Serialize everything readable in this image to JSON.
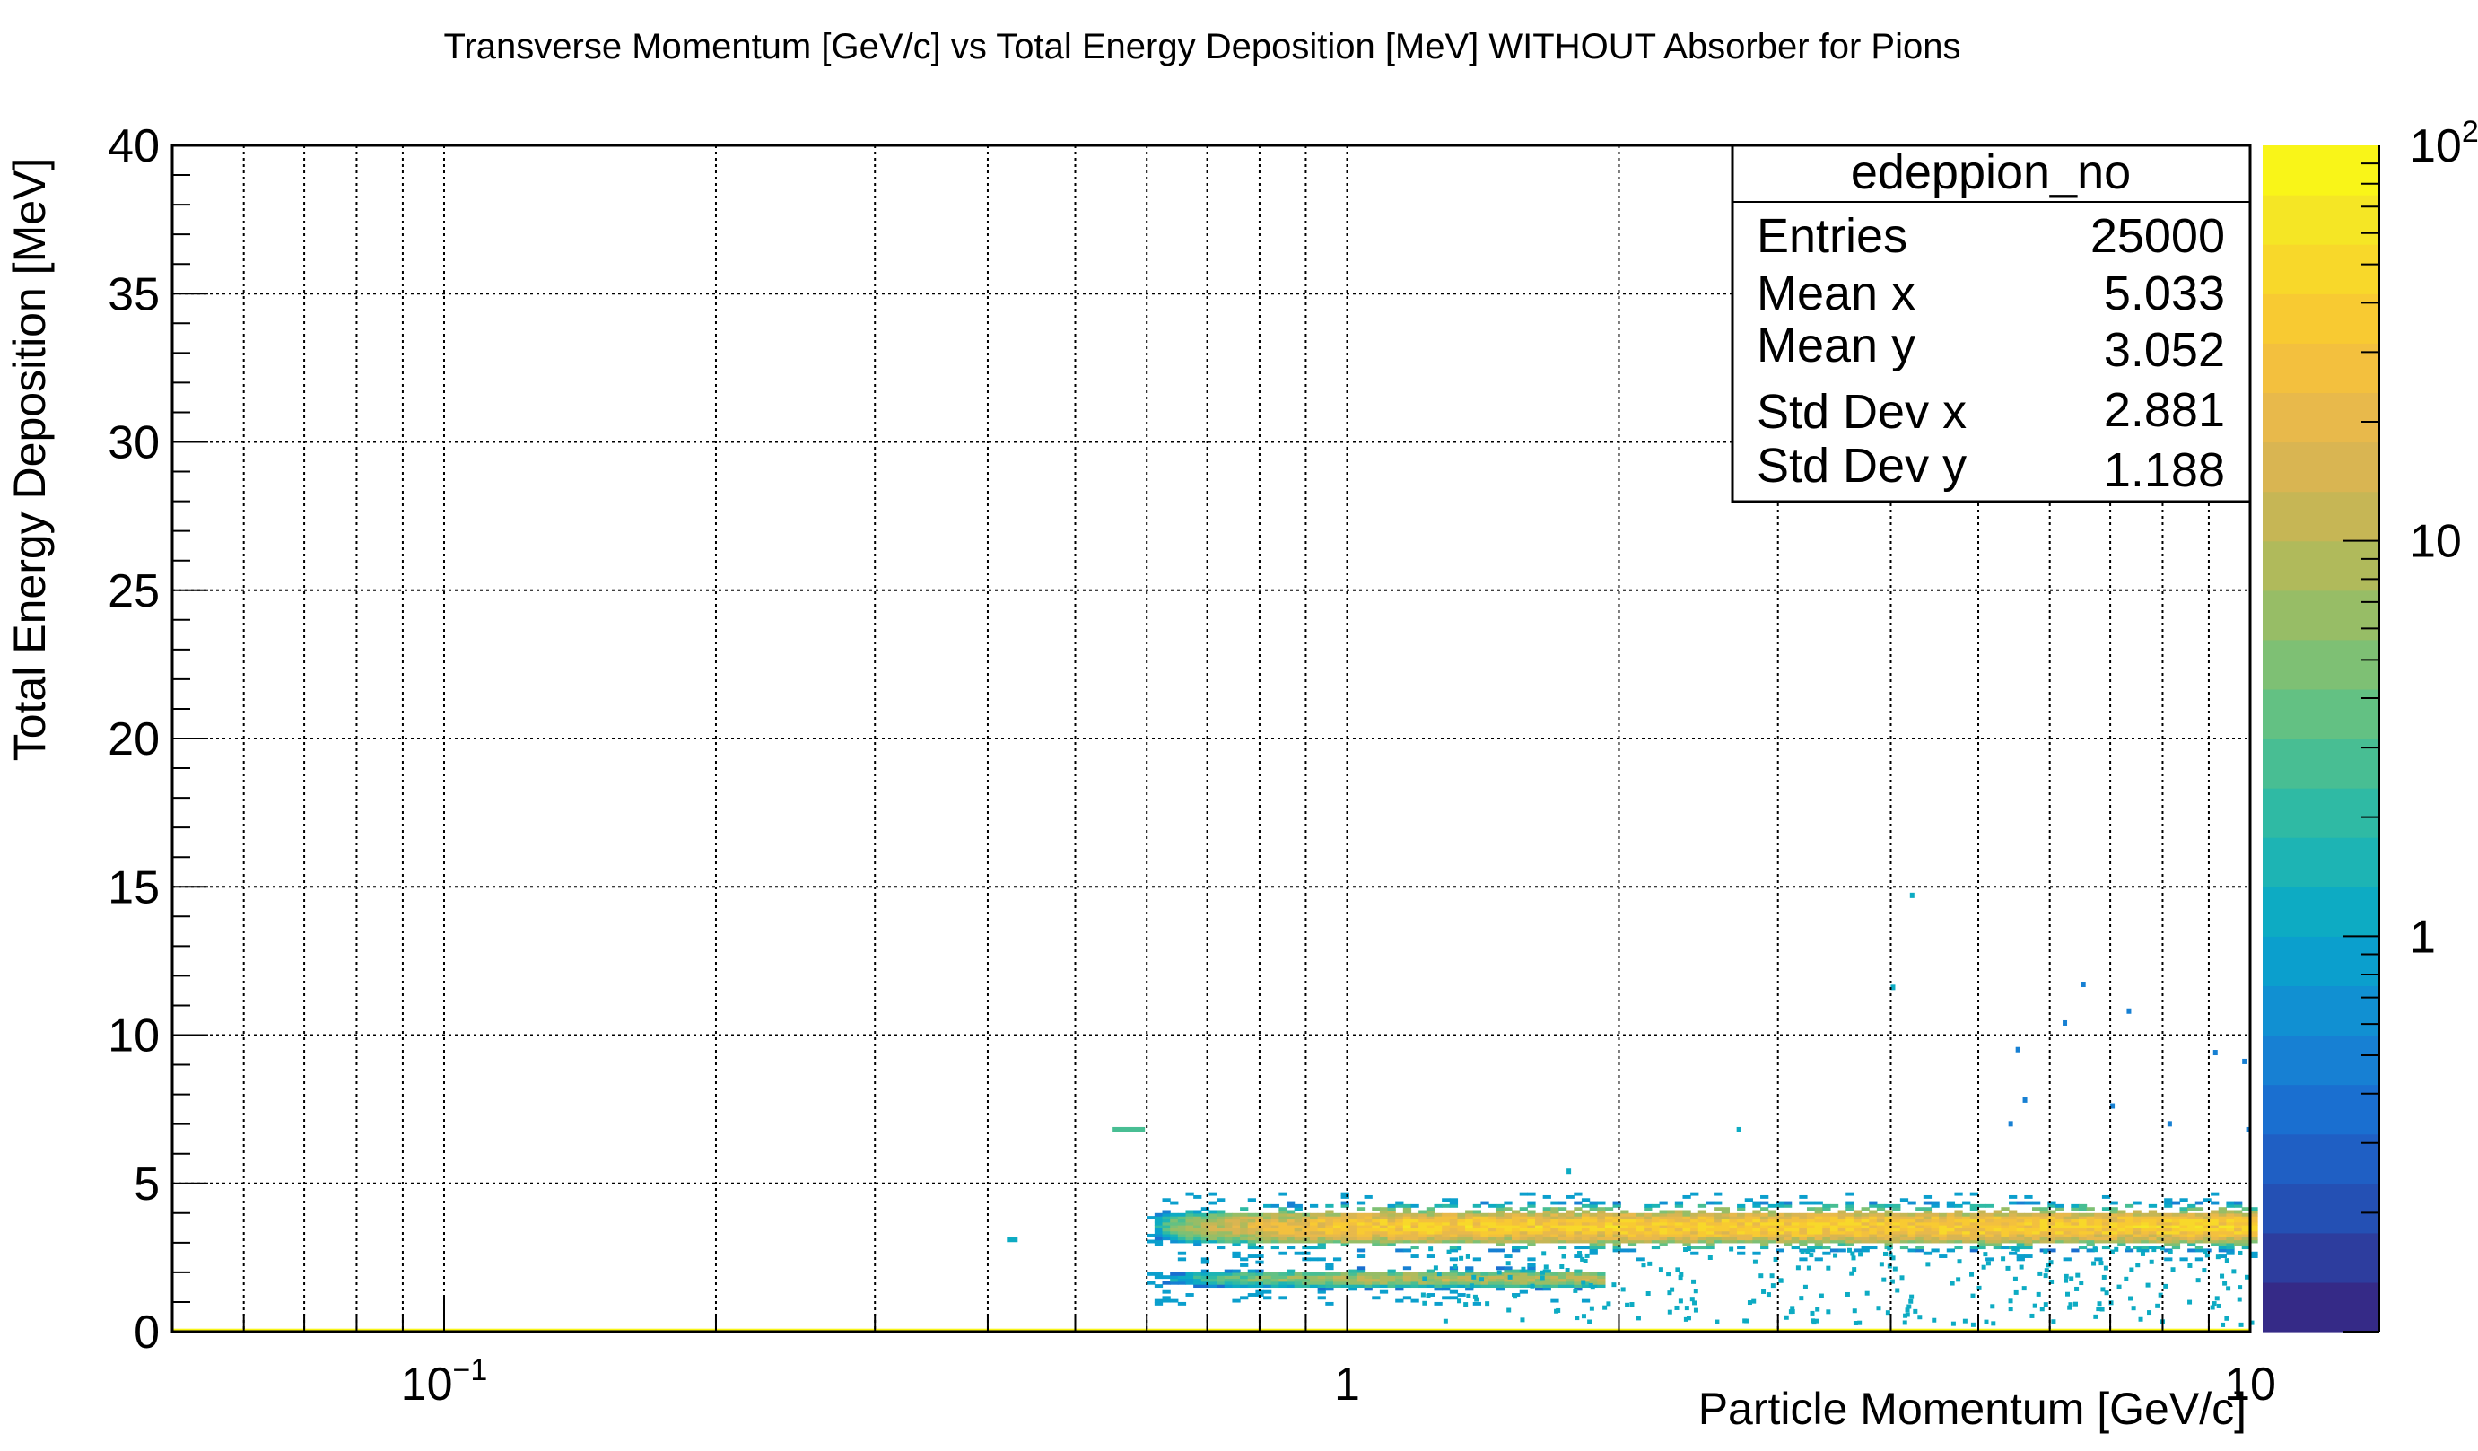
{
  "chart_data": {
    "type": "heatmap",
    "title": "Transverse Momentum [GeV/c] vs Total Energy Deposition [MeV] WITHOUT Absorber for Pions",
    "xlabel": "Particle Momentum [GeV/c]",
    "ylabel": "Total Energy Deposition [MeV]",
    "x_scale": "log",
    "xlim": [
      0.05,
      10
    ],
    "ylim": [
      0,
      40
    ],
    "z_scale": "log",
    "zlim": [
      0.1,
      100
    ],
    "grid": true,
    "x_ticks": [
      {
        "value": 0.1,
        "base": "10",
        "exp": "−1"
      },
      {
        "value": 1,
        "label": "1"
      },
      {
        "value": 10,
        "label": "10"
      }
    ],
    "y_ticks": [
      "0",
      "5",
      "10",
      "15",
      "20",
      "25",
      "30",
      "35",
      "40"
    ],
    "z_ticks": [
      {
        "value": 1,
        "label": "1"
      },
      {
        "value": 10,
        "label": "10"
      },
      {
        "value": 100,
        "base": "10",
        "exp": "2"
      }
    ],
    "colorbar": [
      "#352a87",
      "#2d3d9e",
      "#2450b4",
      "#1f5fc4",
      "#1a6fd0",
      "#1780d3",
      "#1190d2",
      "#0b9fcd",
      "#0dabc3",
      "#1db4b4",
      "#2fbaa4",
      "#48be93",
      "#63c183",
      "#7ec074",
      "#97bd66",
      "#b0ba5b",
      "#c6b655",
      "#d9b552",
      "#e8b94b",
      "#f3c03e",
      "#f8ca32",
      "#f8d82a",
      "#f5e625",
      "#f9f518"
    ],
    "stats": {
      "name": "edeppion_no",
      "rows": [
        {
          "label": "Entries",
          "value": "25000"
        },
        {
          "label": "Mean x",
          "value": "5.033"
        },
        {
          "label": "Mean y",
          "value": "3.052"
        },
        {
          "label": "Std Dev x",
          "value": "2.881"
        },
        {
          "label": "Std Dev y",
          "value": "1.188"
        }
      ]
    },
    "bands": [
      {
        "xmin": 0.6,
        "xmax": 10,
        "ymin": 3.0,
        "ymax": 4.0,
        "peak": 40
      },
      {
        "xmin": 0.6,
        "xmax": 1.9,
        "ymin": 1.5,
        "ymax": 2.0,
        "peak": 10
      },
      {
        "xmin": 0.05,
        "xmax": 10,
        "ymin": 0.0,
        "ymax": 0.1,
        "peak": 100
      }
    ],
    "cells": [
      {
        "x": 0.55,
        "y": 6.8,
        "z": 3
      },
      {
        "x": 0.42,
        "y": 3.1,
        "z": 1
      },
      {
        "x": 4.2,
        "y": 14.7,
        "z": 1
      },
      {
        "x": 4.0,
        "y": 11.6,
        "z": 1
      },
      {
        "x": 6.5,
        "y": 11.7,
        "z": 0.5
      },
      {
        "x": 7.3,
        "y": 10.8,
        "z": 0.5
      },
      {
        "x": 6.2,
        "y": 10.4,
        "z": 0.5
      },
      {
        "x": 5.5,
        "y": 9.5,
        "z": 0.5
      },
      {
        "x": 9.1,
        "y": 9.4,
        "z": 0.5
      },
      {
        "x": 9.8,
        "y": 9.1,
        "z": 0.5
      },
      {
        "x": 5.6,
        "y": 7.8,
        "z": 0.5
      },
      {
        "x": 7.0,
        "y": 7.6,
        "z": 0.5
      },
      {
        "x": 5.4,
        "y": 7.0,
        "z": 0.5
      },
      {
        "x": 8.1,
        "y": 7.0,
        "z": 0.5
      },
      {
        "x": 9.9,
        "y": 6.8,
        "z": 0.5
      },
      {
        "x": 2.7,
        "y": 6.8,
        "z": 1
      },
      {
        "x": 1.75,
        "y": 5.4,
        "z": 1
      }
    ]
  }
}
